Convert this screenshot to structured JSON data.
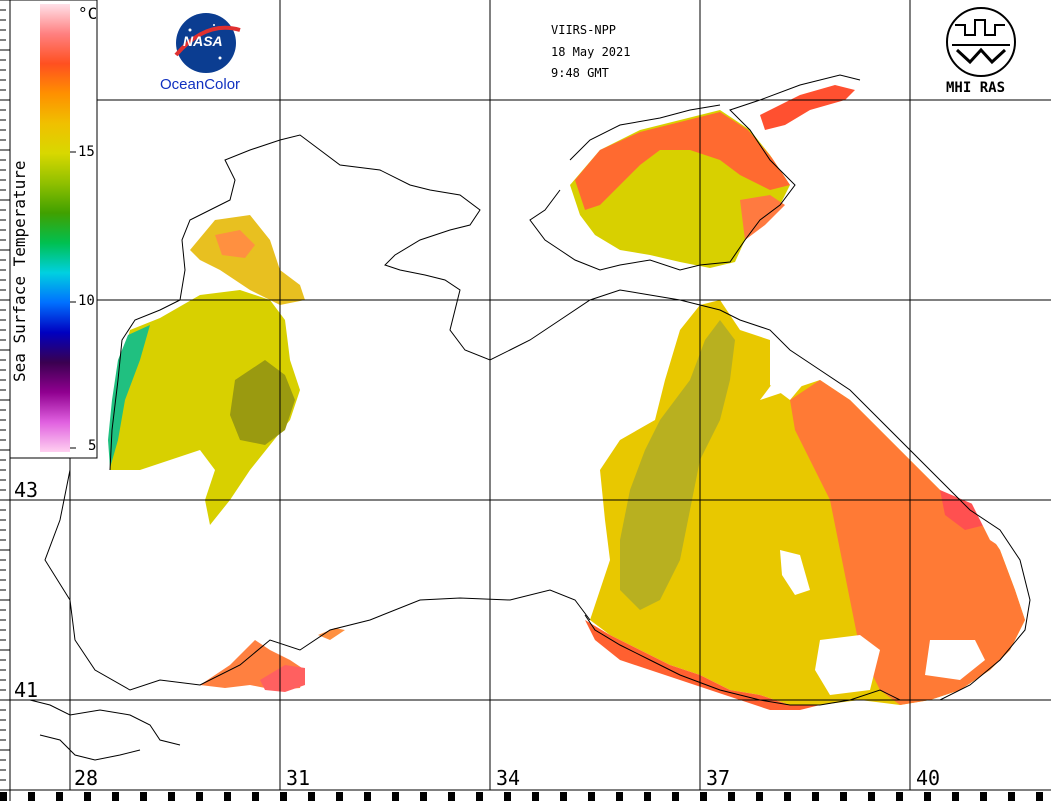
{
  "header": {
    "sensor": "VIIRS-NPP",
    "date": "18 May 2021",
    "time": "9:48 GMT"
  },
  "logos": {
    "nasa_text": "NASA",
    "oceancolor": "OceanColor",
    "mhi": "MHI RAS"
  },
  "colorbar": {
    "title": "Sea Surface Temperature",
    "unit": "°C",
    "min": 5,
    "max": 20,
    "ticks": [
      "15",
      "10",
      "5"
    ],
    "stops": [
      "#ffd0f0",
      "#e060e0",
      "#900090",
      "#3a0050",
      "#0000c0",
      "#0070ff",
      "#00d0e0",
      "#00c050",
      "#40a000",
      "#90c000",
      "#d8d800",
      "#f0c000",
      "#ff9000",
      "#ff5020",
      "#ff8080",
      "#ffe0e8"
    ]
  },
  "axes": {
    "lon_labels": [
      "28",
      "31",
      "34",
      "37",
      "40"
    ],
    "lat_labels": [
      "43",
      "41"
    ]
  },
  "colors": {
    "land": "#ffffff",
    "coast": "#000000",
    "warm": "#ff6a30",
    "mid": "#e8d000",
    "cool": "#a8a800",
    "cold_coast": "#20c080"
  }
}
